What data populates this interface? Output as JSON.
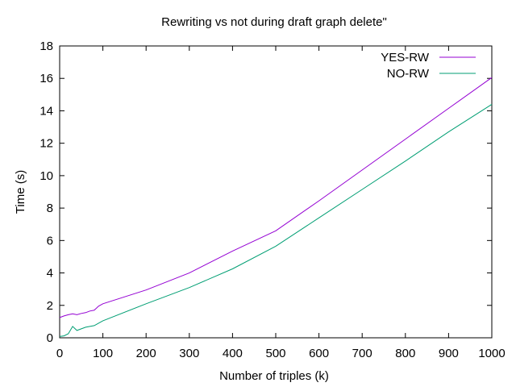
{
  "chart_data": {
    "type": "line",
    "title": "Rewriting vs not during draft graph delete\"",
    "xlabel": "Number of triples (k)",
    "ylabel": "Time (s)",
    "xlim": [
      0,
      1000
    ],
    "ylim": [
      0,
      18
    ],
    "xticks": [
      0,
      100,
      200,
      300,
      400,
      500,
      600,
      700,
      800,
      900,
      1000
    ],
    "yticks": [
      0,
      2,
      4,
      6,
      8,
      10,
      12,
      14,
      16,
      18
    ],
    "grid": false,
    "legend": "top-right",
    "series": [
      {
        "name": "YES-RW",
        "color": "#9400d3",
        "x": [
          0,
          10,
          20,
          30,
          40,
          50,
          60,
          70,
          80,
          90,
          100,
          200,
          300,
          400,
          500,
          600,
          700,
          800,
          900,
          1000
        ],
        "y": [
          1.25,
          1.35,
          1.42,
          1.48,
          1.42,
          1.5,
          1.55,
          1.65,
          1.7,
          1.95,
          2.1,
          2.95,
          4.0,
          5.35,
          6.6,
          8.45,
          10.35,
          12.25,
          14.15,
          16.05
        ]
      },
      {
        "name": "NO-RW",
        "color": "#009e73",
        "x": [
          0,
          10,
          20,
          30,
          40,
          50,
          60,
          70,
          80,
          90,
          100,
          200,
          300,
          400,
          500,
          600,
          700,
          800,
          900,
          1000
        ],
        "y": [
          0.08,
          0.12,
          0.25,
          0.7,
          0.45,
          0.55,
          0.65,
          0.7,
          0.75,
          0.9,
          1.05,
          2.1,
          3.1,
          4.25,
          5.65,
          7.4,
          9.15,
          10.9,
          12.7,
          14.4
        ]
      }
    ]
  }
}
